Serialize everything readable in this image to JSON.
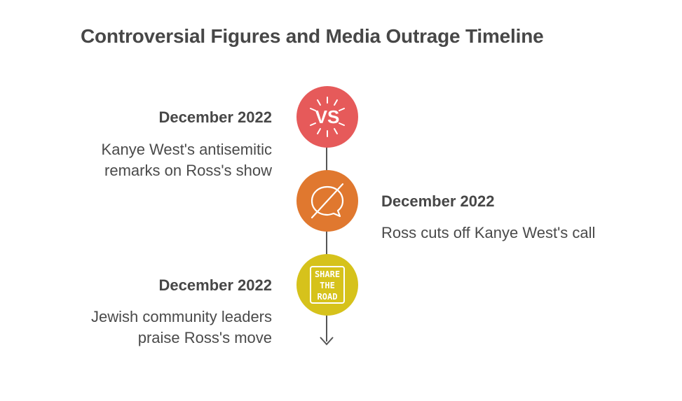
{
  "title": "Controversial Figures and Media Outrage Timeline",
  "events": [
    {
      "date": "December 2022",
      "lines": [
        "Kanye West's antisemitic",
        "remarks on Ross's show"
      ],
      "side": "left",
      "color": "#e65a5a",
      "icon": "versus-icon",
      "icon_text": "VS"
    },
    {
      "date": "December 2022",
      "lines": [
        "Ross cuts off Kanye West's call"
      ],
      "side": "right",
      "color": "#e0782f",
      "icon": "no-chat-icon"
    },
    {
      "date": "December 2022",
      "lines": [
        "Jewish community leaders",
        "praise Ross's move"
      ],
      "side": "left",
      "color": "#d6c21b",
      "icon": "share-the-road-sign-icon",
      "icon_text": [
        "SHARE",
        "THE",
        "ROAD"
      ]
    }
  ]
}
